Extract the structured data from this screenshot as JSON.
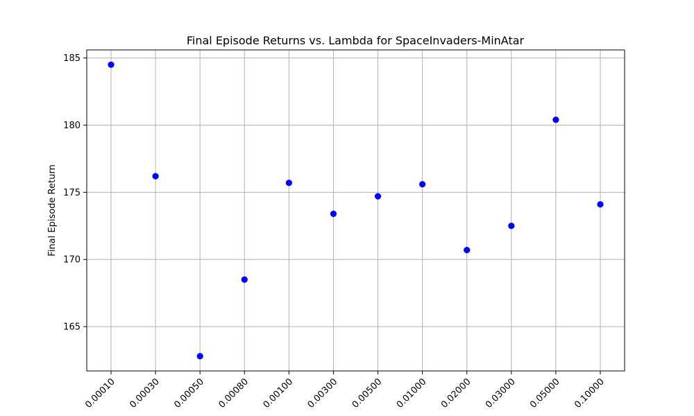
{
  "chart_data": {
    "type": "scatter",
    "title": "Final Episode Returns vs. Lambda for SpaceInvaders-MinAtar",
    "xlabel": "",
    "ylabel": "Final Episode Return",
    "x_scale": "categorical",
    "categories": [
      "0.00010",
      "0.00030",
      "0.00050",
      "0.00080",
      "0.00100",
      "0.00300",
      "0.00500",
      "0.01000",
      "0.02000",
      "0.03000",
      "0.05000",
      "0.10000"
    ],
    "values": [
      184.5,
      176.2,
      162.8,
      168.5,
      175.7,
      173.4,
      174.7,
      175.6,
      170.7,
      172.5,
      180.4,
      174.1
    ],
    "ylim": [
      161.7,
      185.6
    ],
    "yticks": [
      165,
      170,
      175,
      180,
      185
    ],
    "grid": true,
    "legend": "none",
    "marker_color": "#0000ff"
  }
}
